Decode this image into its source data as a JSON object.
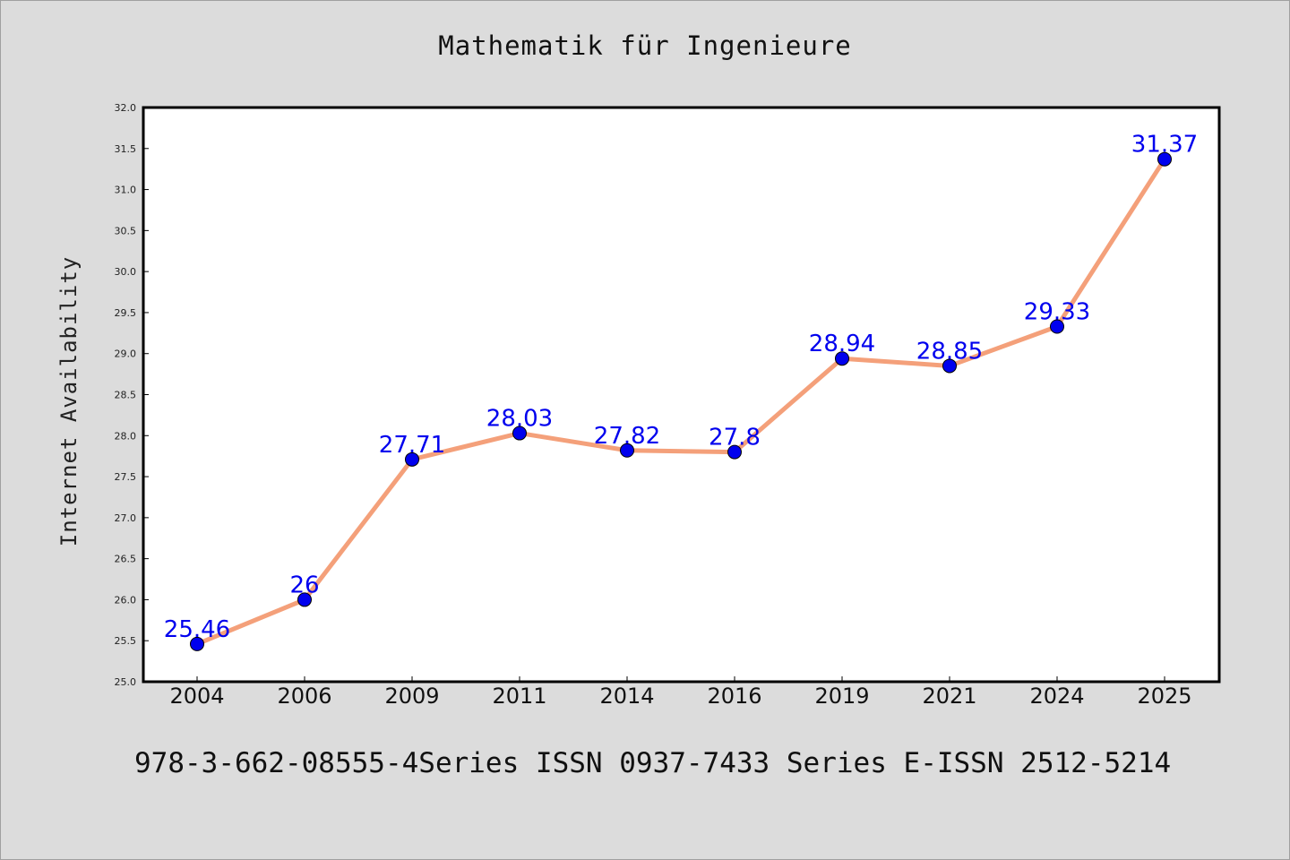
{
  "chart_data": {
    "type": "line",
    "title": "Mathematik für Ingenieure",
    "xlabel": "",
    "ylabel": "Internet Availability",
    "categories": [
      "2004",
      "2006",
      "2009",
      "2011",
      "2014",
      "2016",
      "2019",
      "2021",
      "2024",
      "2025"
    ],
    "series": [
      {
        "values": [
          25.46,
          26,
          27.71,
          28.03,
          27.82,
          27.8,
          28.94,
          28.85,
          29.33,
          31.37
        ],
        "data_labels": [
          "25.46",
          "26",
          "27.71",
          "28.03",
          "27.82",
          "27.8",
          "28.94",
          "28.85",
          "29.33",
          "31.37"
        ],
        "line_color": "#f4a07a",
        "marker_color": "#0000ee"
      }
    ],
    "ylim": [
      25.0,
      32.0
    ],
    "yticks": [
      "25.0",
      "25.5",
      "26.0",
      "26.5",
      "27.0",
      "27.5",
      "28.0",
      "28.5",
      "29.0",
      "29.5",
      "30.0",
      "30.5",
      "31.0",
      "31.5",
      "32.0"
    ],
    "grid": false,
    "legend": "none"
  },
  "footer": "978-3-662-08555-4Series ISSN 0937-7433 Series E-ISSN 2512-5214"
}
